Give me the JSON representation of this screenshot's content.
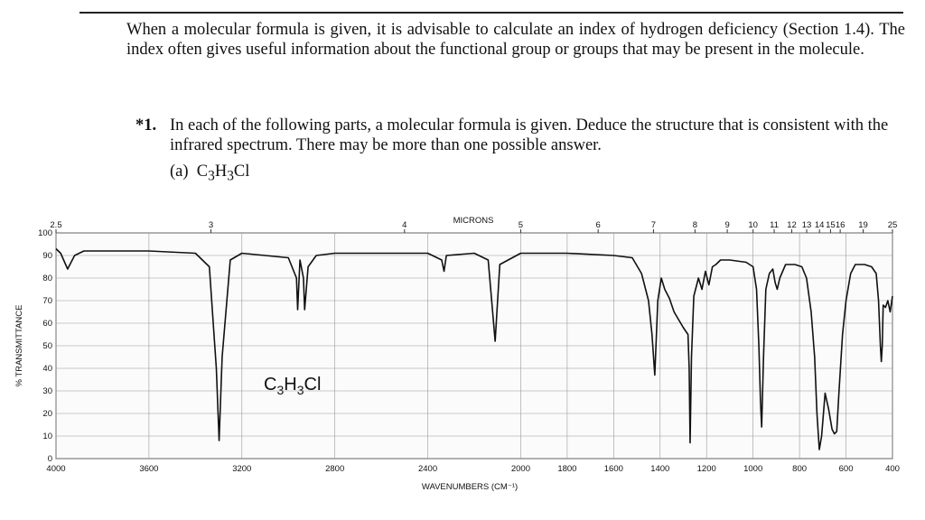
{
  "paragraph": "When a molecular formula is given, it is advisable to calculate an index of hydrogen deficiency (Section 1.4). The index often gives useful information about the functional group or groups that may be present in the molecule.",
  "problem": {
    "number": "*1.",
    "text": "In each of the following parts, a molecular formula is given. Deduce the structure that is consistent with the infrared spectrum. There may be more than one possible answer."
  },
  "part": {
    "label": "(a)",
    "formula": [
      "C",
      "3",
      "H",
      "3",
      "Cl"
    ]
  },
  "chart_data": {
    "type": "line",
    "annotation": [
      "C",
      "3",
      "H",
      "3",
      "Cl"
    ],
    "xlabel": "WAVENUMBERS (CM⁻¹)",
    "ylabel": "% TRANSMITTANCE",
    "top_axis": {
      "label": "MICRONS",
      "ticks": [
        2.5,
        3,
        4,
        5,
        6,
        7,
        8,
        9,
        10,
        11,
        12,
        13,
        14,
        15,
        16,
        19,
        25
      ]
    },
    "xlim": [
      4000,
      400
    ],
    "xticks": [
      4000,
      3600,
      3200,
      2800,
      2400,
      2000,
      1800,
      1600,
      1400,
      1200,
      1000,
      800,
      600,
      400
    ],
    "ylim": [
      0,
      100
    ],
    "yticks": [
      0,
      10,
      20,
      30,
      40,
      50,
      60,
      70,
      80,
      90,
      100
    ],
    "grid": true,
    "color": "#111111",
    "x": [
      4000,
      3980,
      3950,
      3920,
      3880,
      3800,
      3600,
      3400,
      3340,
      3310,
      3298,
      3285,
      3250,
      3200,
      3100,
      3000,
      2965,
      2960,
      2950,
      2935,
      2930,
      2915,
      2880,
      2800,
      2600,
      2400,
      2340,
      2330,
      2320,
      2200,
      2140,
      2125,
      2110,
      2090,
      2000,
      1800,
      1600,
      1520,
      1480,
      1450,
      1435,
      1423,
      1410,
      1395,
      1380,
      1360,
      1340,
      1300,
      1280,
      1275,
      1271,
      1265,
      1255,
      1235,
      1220,
      1205,
      1190,
      1175,
      1160,
      1140,
      1100,
      1030,
      1000,
      985,
      975,
      968,
      963,
      955,
      945,
      930,
      915,
      905,
      896,
      885,
      860,
      820,
      790,
      770,
      750,
      735,
      725,
      715,
      705,
      690,
      675,
      660,
      650,
      640,
      630,
      615,
      600,
      580,
      560,
      520,
      490,
      470,
      460,
      452,
      448,
      444,
      440,
      430,
      420,
      410,
      400
    ],
    "values": [
      93,
      91,
      84,
      90,
      92,
      92,
      92,
      91,
      85,
      40,
      8,
      45,
      88,
      91,
      90,
      89,
      80,
      66,
      88,
      80,
      66,
      85,
      90,
      91,
      91,
      91,
      88,
      83,
      90,
      91,
      88,
      70,
      52,
      86,
      91,
      91,
      90,
      89,
      82,
      70,
      55,
      37,
      70,
      80,
      75,
      71,
      65,
      58,
      55,
      40,
      7,
      45,
      72,
      80,
      75,
      83,
      77,
      85,
      86,
      88,
      88,
      87,
      85,
      75,
      50,
      25,
      14,
      45,
      75,
      82,
      84,
      78,
      75,
      80,
      86,
      86,
      85,
      80,
      65,
      45,
      20,
      4,
      10,
      29,
      22,
      13,
      11,
      12,
      30,
      55,
      70,
      82,
      86,
      86,
      85,
      82,
      70,
      50,
      43,
      50,
      68,
      67,
      70,
      65,
      72
    ]
  }
}
